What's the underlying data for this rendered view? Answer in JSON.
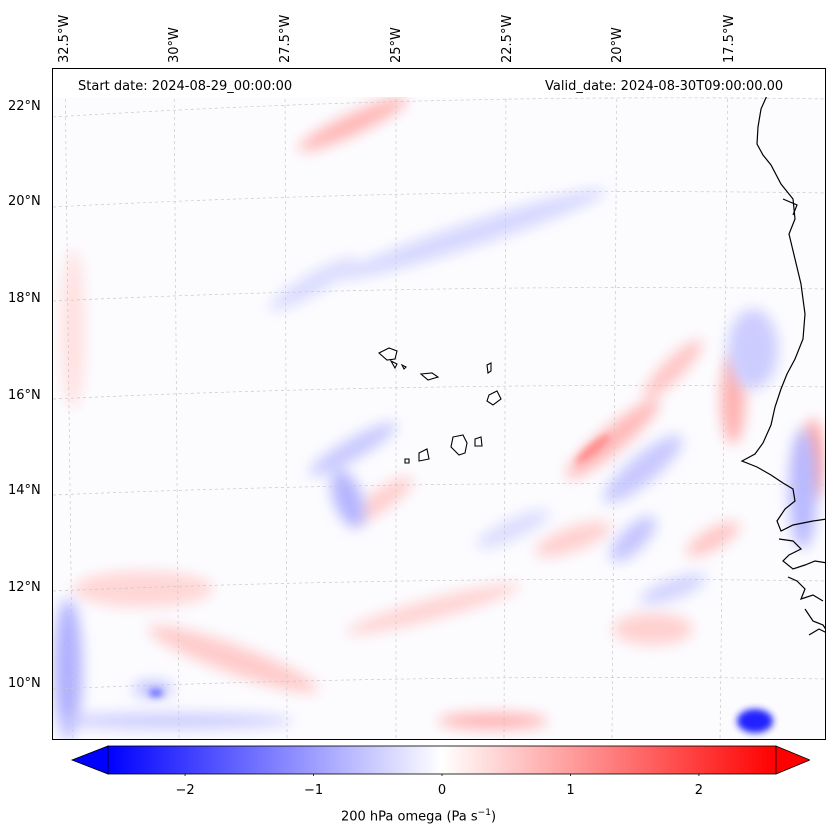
{
  "header": {
    "start_date": "Start date: 2024-08-29_00:00:00",
    "valid_date": "Valid_date: 2024-08-30T09:00:00.00"
  },
  "map": {
    "lon_labels": [
      "32.5°W",
      "30°W",
      "27.5°W",
      "25°W",
      "22.5°W",
      "20°W",
      "17.5°W"
    ],
    "lat_labels": [
      "22°N",
      "20°N",
      "18°N",
      "16°N",
      "14°N",
      "12°N",
      "10°N"
    ],
    "field_colors": {
      "negative": "#0000ff",
      "zero": "#ffffff",
      "positive": "#ff0000"
    }
  },
  "colorbar": {
    "ticks": [
      "−2",
      "−1",
      "0",
      "1",
      "2"
    ],
    "tick_values": [
      -2,
      -1,
      0,
      1,
      2
    ],
    "range": [
      -2.6,
      2.6
    ],
    "label_text": "200 hPa omega (Pa s",
    "label_sup": "−1",
    "label_close": ")"
  }
}
